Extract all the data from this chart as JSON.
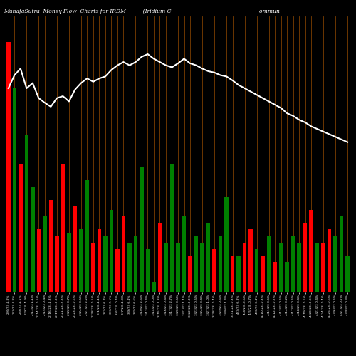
{
  "title": "MunafaSutra  Money Flow  Charts for IRDM          (Iridium C                                                    ommun",
  "bg_color": "#000000",
  "line_color": "#ffffff",
  "vline_color": "#8B4500",
  "x_labels": [
    "2/6/23 4.8%",
    "2/7/23 4.8%",
    "2/8/23 4.5%",
    "2/9/23 -4.9%",
    "2/13/23 1.1%",
    "2/14/23 -0.5%",
    "2/15/23 0.4%",
    "2/16/23 -1.3%",
    "2/17/23 -0.3%",
    "2/21/23 -2.8%",
    "2/22/23 0.7%",
    "2/23/23 -0.6%",
    "2/24/23 0.5%",
    "2/27/23 2.2%",
    "2/28/23 -0.5%",
    "3/1/23 -1.1%",
    "3/2/23 0.4%",
    "3/3/23 2.1%",
    "3/6/23 -0.4%",
    "3/7/23 -1.3%",
    "3/8/23 0.4%",
    "3/9/23 0.6%",
    "3/10/23 2.5%",
    "3/13/23 0.4%",
    "3/14/23 0.0%",
    "3/15/23 -1.3%",
    "3/16/23 0.4%",
    "3/17/23 2.7%",
    "3/20/23 0.5%",
    "3/21/23 1.1%",
    "3/22/23 -0.3%",
    "3/23/23 0.5%",
    "3/24/23 0.4%",
    "3/27/23 1.0%",
    "3/28/23 -0.4%",
    "3/29/23 0.5%",
    "3/30/23 1.4%",
    "3/31/23 -0.3%",
    "4/3/23 0.3%",
    "4/4/23 -0.5%",
    "4/5/23 -0.7%",
    "4/6/23 0.4%",
    "4/10/23 -0.3%",
    "4/11/23 0.6%",
    "4/12/23 -0.2%",
    "4/13/23 0.5%",
    "4/14/23 0.2%",
    "4/17/23 0.5%",
    "4/18/23 0.4%",
    "4/19/23 -0.6%",
    "4/20/23 -0.8%",
    "4/21/23 0.4%",
    "4/24/23 -0.4%",
    "4/25/23 -0.6%",
    "4/26/23 0.5%",
    "4/27/23 0.7%",
    "4/28/23 0.3%"
  ],
  "bar_heights": [
    380,
    310,
    195,
    240,
    160,
    95,
    115,
    140,
    85,
    195,
    90,
    130,
    95,
    170,
    75,
    95,
    85,
    125,
    65,
    115,
    75,
    85,
    190,
    65,
    15,
    105,
    75,
    195,
    75,
    115,
    55,
    85,
    75,
    105,
    65,
    85,
    145,
    55,
    55,
    75,
    95,
    65,
    55,
    85,
    45,
    75,
    45,
    85,
    75,
    105,
    125,
    75,
    75,
    95,
    85,
    115,
    55
  ],
  "bar_colors": [
    "red",
    "green",
    "red",
    "green",
    "green",
    "red",
    "green",
    "red",
    "red",
    "red",
    "green",
    "red",
    "green",
    "green",
    "red",
    "red",
    "green",
    "green",
    "red",
    "red",
    "green",
    "green",
    "green",
    "green",
    "green",
    "red",
    "green",
    "green",
    "green",
    "green",
    "red",
    "green",
    "green",
    "green",
    "red",
    "green",
    "green",
    "red",
    "green",
    "red",
    "red",
    "green",
    "red",
    "green",
    "red",
    "green",
    "green",
    "green",
    "green",
    "red",
    "red",
    "green",
    "red",
    "red",
    "green",
    "green",
    "green"
  ],
  "line_values": [
    310,
    330,
    340,
    310,
    318,
    295,
    288,
    282,
    295,
    298,
    290,
    308,
    318,
    325,
    320,
    325,
    328,
    338,
    345,
    350,
    345,
    350,
    358,
    362,
    355,
    350,
    345,
    342,
    348,
    355,
    348,
    345,
    340,
    336,
    334,
    330,
    328,
    322,
    315,
    310,
    305,
    300,
    295,
    290,
    285,
    280,
    272,
    268,
    262,
    258,
    252,
    248,
    244,
    240,
    236,
    232,
    228
  ],
  "ylim_max": 420,
  "ylim_min": 0
}
